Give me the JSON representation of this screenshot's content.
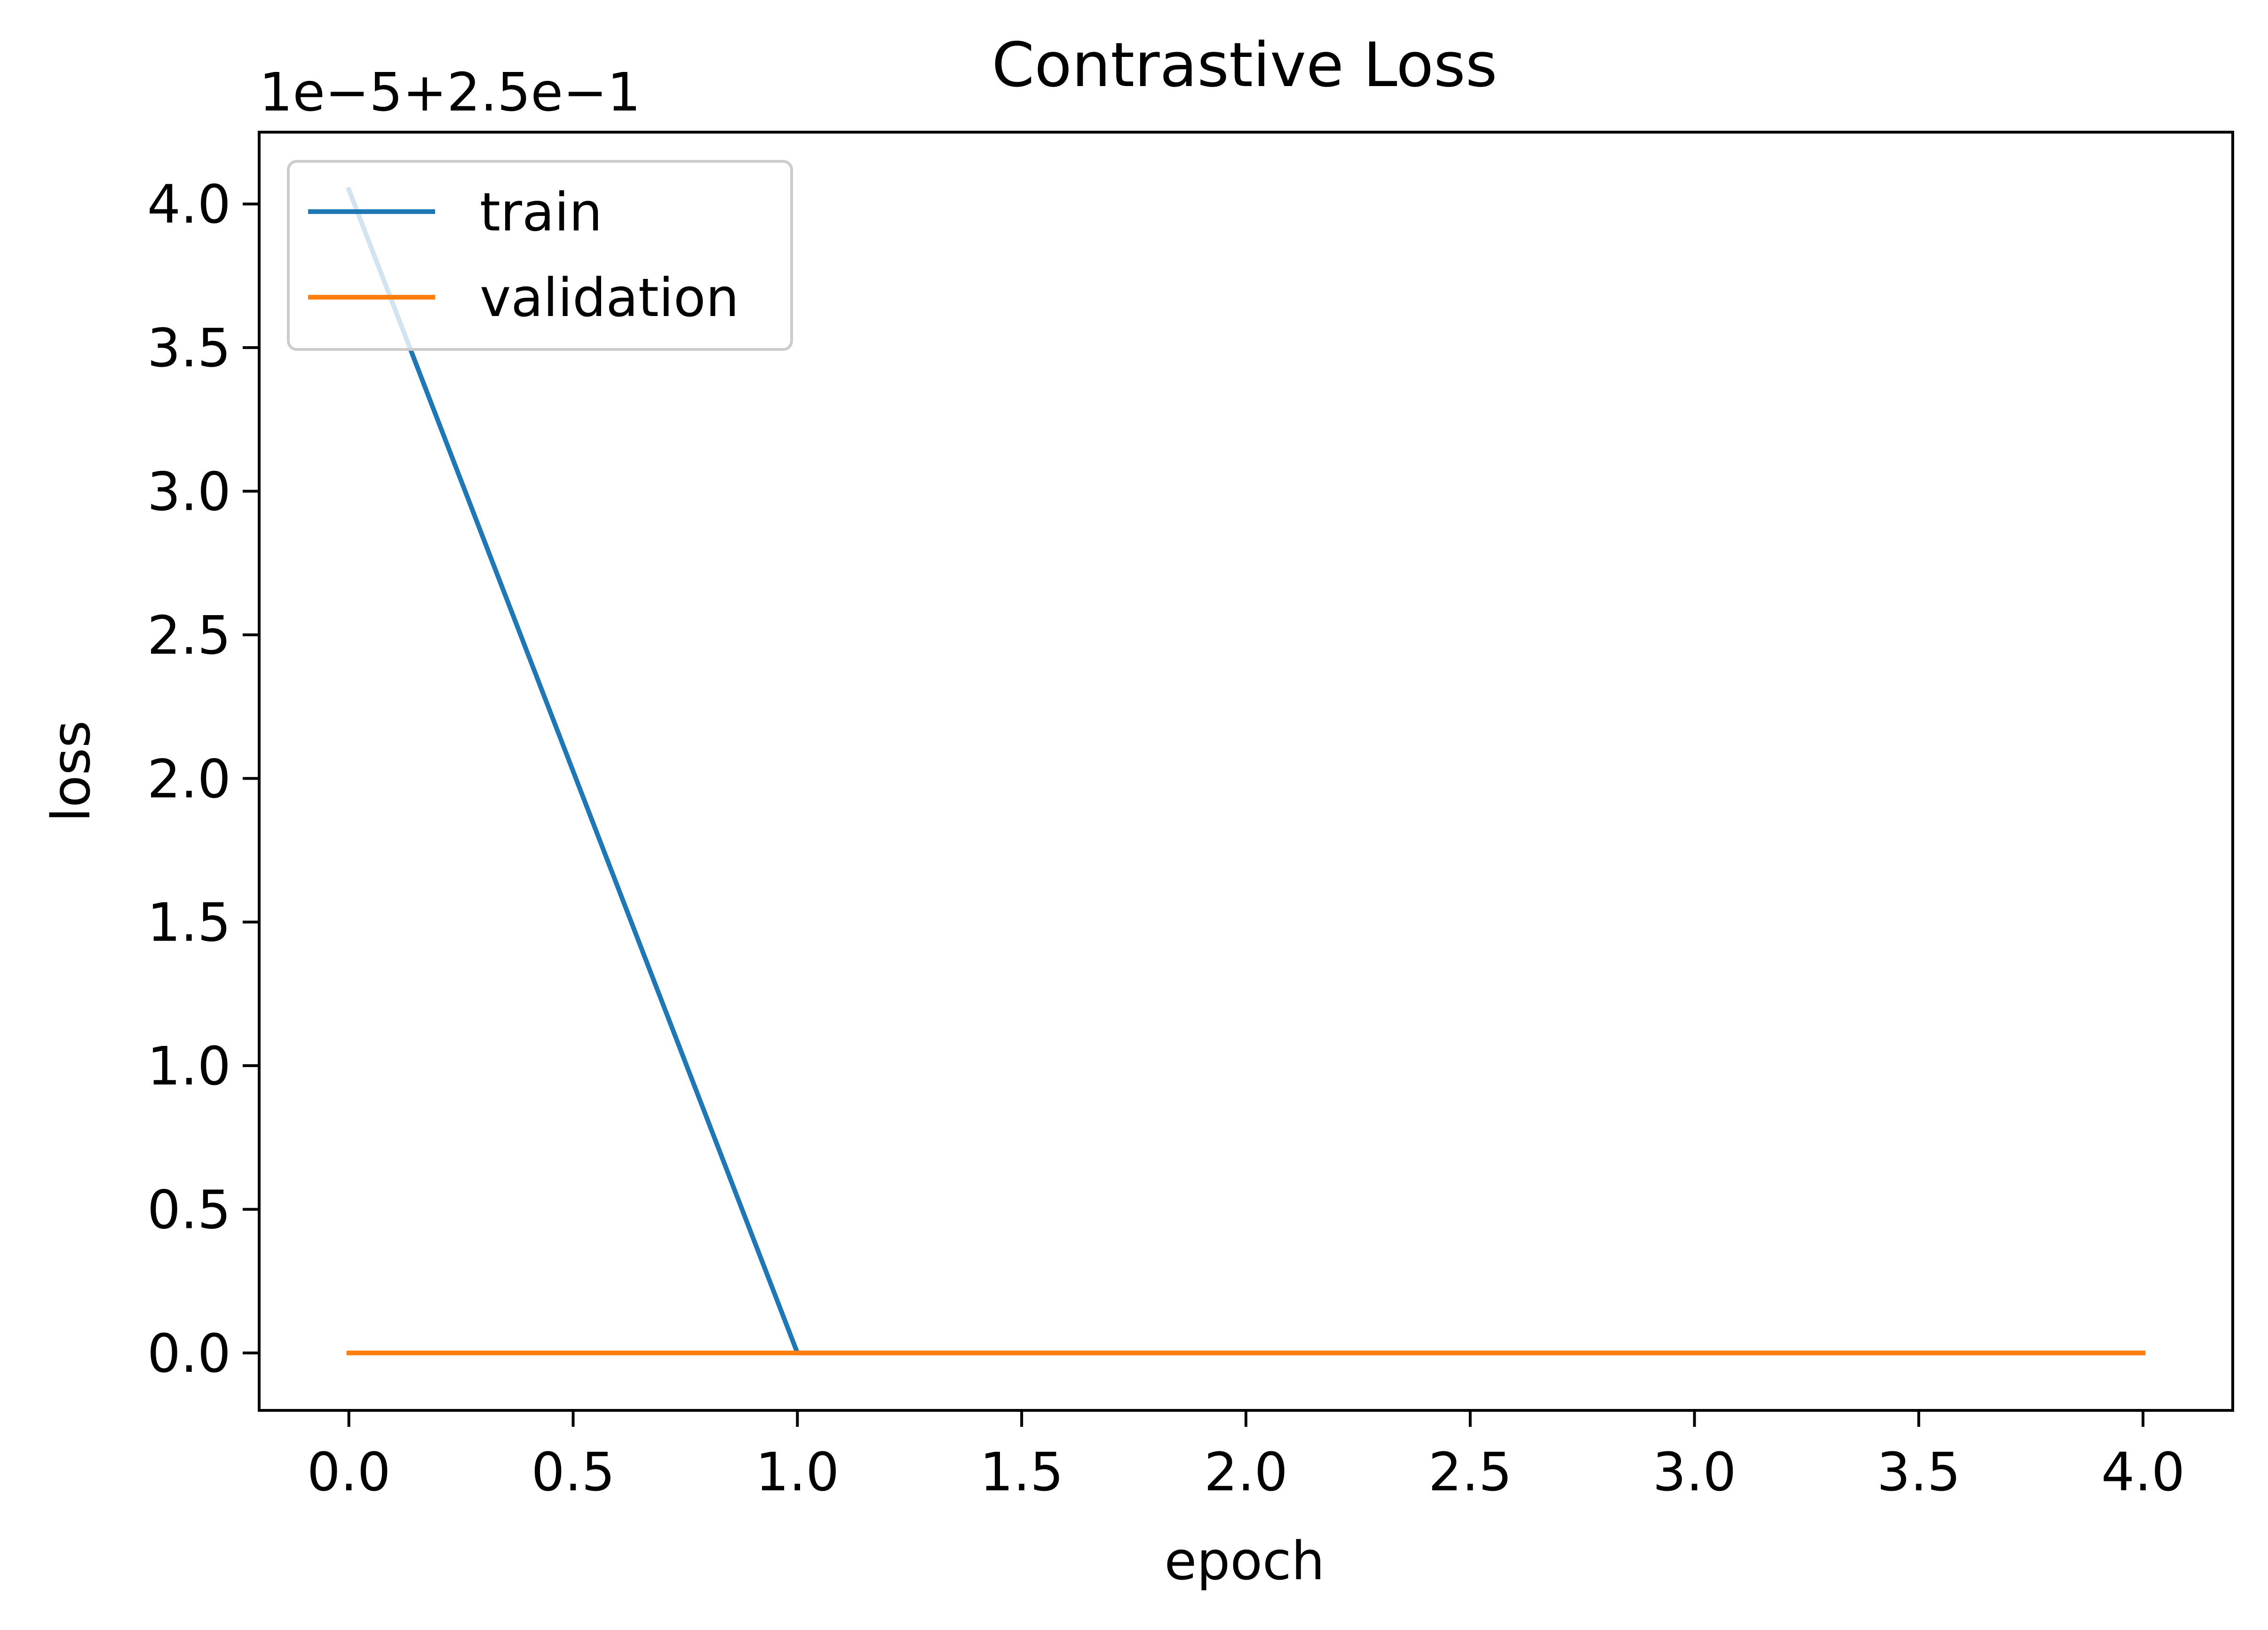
{
  "chart_data": {
    "type": "line",
    "title": "Contrastive Loss",
    "xlabel": "epoch",
    "ylabel": "loss",
    "offset_text": "1e−5+2.5e−1",
    "x": [
      0,
      1,
      2,
      3,
      4
    ],
    "series": [
      {
        "name": "train",
        "color": "#1f77b4",
        "values": [
          4.05,
          0.0,
          0.0,
          0.0,
          0.0
        ]
      },
      {
        "name": "validation",
        "color": "#ff7f0e",
        "values": [
          0.0,
          0.0,
          0.0,
          0.0,
          0.0
        ]
      }
    ],
    "xlim": [
      -0.2,
      4.2
    ],
    "ylim": [
      -0.2,
      4.25
    ],
    "xticks": [
      0.0,
      0.5,
      1.0,
      1.5,
      2.0,
      2.5,
      3.0,
      3.5,
      4.0
    ],
    "xtick_labels": [
      "0.0",
      "0.5",
      "1.0",
      "1.5",
      "2.0",
      "2.5",
      "3.0",
      "3.5",
      "4.0"
    ],
    "yticks": [
      0.0,
      0.5,
      1.0,
      1.5,
      2.0,
      2.5,
      3.0,
      3.5,
      4.0
    ],
    "ytick_labels": [
      "0.0",
      "0.5",
      "1.0",
      "1.5",
      "2.0",
      "2.5",
      "3.0",
      "3.5",
      "4.0"
    ],
    "grid": false,
    "legend_position": "upper left"
  }
}
